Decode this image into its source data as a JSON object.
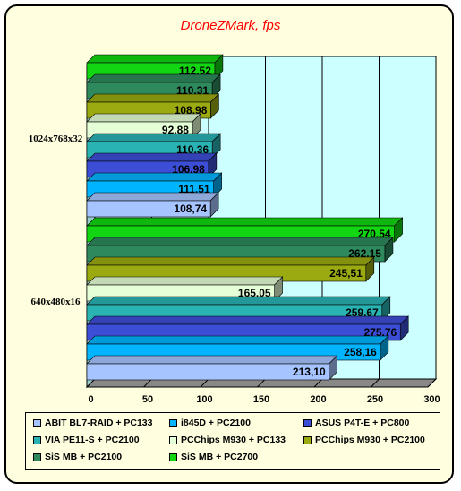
{
  "chart_data": {
    "type": "bar",
    "orientation": "horizontal",
    "title": "DroneZMark, fps",
    "categories": [
      "1024x768x32",
      "640x480x16"
    ],
    "xlim": [
      0,
      300
    ],
    "xticks": [
      0,
      50,
      100,
      150,
      200,
      250,
      300
    ],
    "grid": true,
    "legend_position": "bottom",
    "series": [
      {
        "name": "ABIT BL7-RAID + PC133",
        "color": "#a6c4ff",
        "values": [
          108.74,
          213.1
        ],
        "labels": [
          "108,74",
          "213,10"
        ]
      },
      {
        "name": "i845D + PC2100",
        "color": "#00b4ff",
        "values": [
          111.51,
          258.16
        ],
        "labels": [
          "111,51",
          "258,16"
        ]
      },
      {
        "name": "ASUS P4T-E + PC800",
        "color": "#3d4ed6",
        "values": [
          106.98,
          275.76
        ],
        "labels": [
          "106,98",
          "275,76"
        ]
      },
      {
        "name": "VIA PE11-S + PC2100",
        "color": "#2ab3b3",
        "values": [
          110.36,
          259.67
        ],
        "labels": [
          "110,36",
          "259,67"
        ]
      },
      {
        "name": "PCChips M930 + PC133",
        "color": "#e5ffd6",
        "values": [
          92.88,
          165.05
        ],
        "labels": [
          "92,88",
          "165,05"
        ]
      },
      {
        "name": "PCChips M930 + PC2100",
        "color": "#9aaa10",
        "values": [
          108.98,
          245.51
        ],
        "labels": [
          "108,98",
          "245,51"
        ]
      },
      {
        "name": "SiS MB + PC2100",
        "color": "#2e8a5c",
        "values": [
          110.31,
          262.15
        ],
        "labels": [
          "110,31",
          "262,15"
        ]
      },
      {
        "name": "SiS MB + PC2700",
        "color": "#11d611",
        "values": [
          112.52,
          270.54
        ],
        "labels": [
          "112,52",
          "270,54"
        ]
      }
    ]
  },
  "colors": {
    "plot_background": "#ccffff",
    "frame_background": "#ffffe0",
    "title_color": "#ff0000"
  }
}
